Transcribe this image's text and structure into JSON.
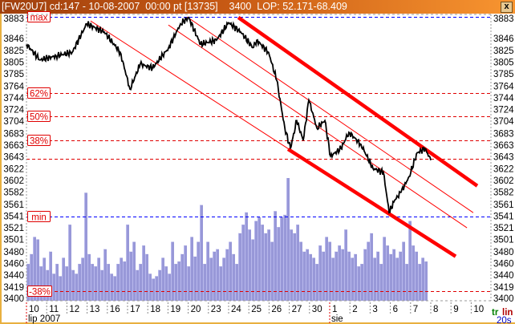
{
  "window": {
    "title": "[FW20U7] cd:147 - 10-08-2007  00:00 pt [13735]    3400  LOP: 52.171-68.409",
    "close_label": "x"
  },
  "chart_data": {
    "type": "line",
    "instrument": "FW20U7",
    "ylim": [
      3400,
      3883
    ],
    "y_ticks": [
      "3883",
      "3846",
      "3825",
      "3805",
      "3785",
      "3764",
      "3744",
      "3724",
      "3704",
      "3683",
      "3663",
      "3643",
      "3622",
      "3602",
      "3582",
      "3561",
      "3541",
      "3521",
      "3501",
      "3480",
      "3460",
      "3440",
      "3419",
      "3400"
    ],
    "x_ticks": [
      "10",
      "11",
      "12",
      "13",
      "16",
      "17",
      "18",
      "19",
      "20",
      "23",
      "24",
      "25",
      "26",
      "27",
      "30",
      "1",
      "2",
      "3",
      "6",
      "7",
      "8",
      "9",
      "10"
    ],
    "trading_days": [
      "2007-07-10",
      "2007-07-11",
      "2007-07-12",
      "2007-07-13",
      "2007-07-16",
      "2007-07-17",
      "2007-07-18",
      "2007-07-19",
      "2007-07-20",
      "2007-07-23",
      "2007-07-24",
      "2007-07-25",
      "2007-07-26",
      "2007-07-27",
      "2007-07-30",
      "2007-08-01",
      "2007-08-02",
      "2007-08-03",
      "2007-08-06",
      "2007-08-07",
      "2007-08-08",
      "2007-08-09",
      "2007-08-10"
    ],
    "month_labels": [
      {
        "label": "lip 2007",
        "day": "2007-07-10"
      },
      {
        "label": "sie",
        "day": "2007-08-01"
      }
    ],
    "levels": [
      {
        "label": "max",
        "price": 3883,
        "color": "#0000ff"
      },
      {
        "label": "62%",
        "price": 3752,
        "color": "#e00000"
      },
      {
        "label": "50%",
        "price": 3712,
        "color": "#e00000"
      },
      {
        "label": "38%",
        "price": 3671,
        "color": "#e00000"
      },
      {
        "label": "",
        "price": 3640,
        "color": "#e00000"
      },
      {
        "label": "min",
        "price": 3541,
        "color": "#0000ff"
      },
      {
        "label": "-38%",
        "price": 3412,
        "color": "#e00000"
      }
    ],
    "price_series": [
      [
        "2007-07-10",
        0.0,
        3836
      ],
      [
        "2007-07-10",
        0.67,
        3809
      ],
      [
        "2007-07-11",
        0.47,
        3816
      ],
      [
        "2007-07-12",
        0.26,
        3822
      ],
      [
        "2007-07-12",
        0.98,
        3871
      ],
      [
        "2007-07-13",
        0.85,
        3857
      ],
      [
        "2007-07-16",
        0.64,
        3822
      ],
      [
        "2007-07-17",
        0.12,
        3759
      ],
      [
        "2007-07-17",
        0.63,
        3802
      ],
      [
        "2007-07-18",
        0.23,
        3795
      ],
      [
        "2007-07-19",
        0.02,
        3829
      ],
      [
        "2007-07-19",
        0.62,
        3871
      ],
      [
        "2007-07-20",
        0.02,
        3882
      ],
      [
        "2007-07-20",
        0.61,
        3836
      ],
      [
        "2007-07-23",
        0.4,
        3843
      ],
      [
        "2007-07-24",
        0.0,
        3873
      ],
      [
        "2007-07-24",
        0.6,
        3857
      ],
      [
        "2007-07-25",
        0.2,
        3830
      ],
      [
        "2007-07-25",
        0.39,
        3843
      ],
      [
        "2007-07-25",
        0.98,
        3822
      ],
      [
        "2007-07-26",
        0.38,
        3774
      ],
      [
        "2007-07-26",
        0.78,
        3692
      ],
      [
        "2007-07-27",
        0.06,
        3657
      ],
      [
        "2007-07-27",
        0.37,
        3705
      ],
      [
        "2007-07-27",
        0.69,
        3671
      ],
      [
        "2007-07-27",
        0.97,
        3740
      ],
      [
        "2007-07-30",
        0.37,
        3692
      ],
      [
        "2007-07-30",
        0.76,
        3705
      ],
      [
        "2007-08-01",
        0.04,
        3644
      ],
      [
        "2007-08-01",
        0.56,
        3657
      ],
      [
        "2007-08-01",
        0.95,
        3685
      ],
      [
        "2007-08-02",
        0.55,
        3664
      ],
      [
        "2007-08-03",
        0.14,
        3623
      ],
      [
        "2007-08-03",
        0.66,
        3616
      ],
      [
        "2007-08-03",
        0.94,
        3547
      ],
      [
        "2007-08-06",
        0.21,
        3568
      ],
      [
        "2007-08-06",
        0.53,
        3582
      ],
      [
        "2007-08-06",
        0.93,
        3609
      ],
      [
        "2007-08-07",
        0.33,
        3650
      ],
      [
        "2007-08-07",
        0.72,
        3657
      ],
      [
        "2007-08-07",
        1.0,
        3637
      ]
    ],
    "channel_lines": [
      {
        "from": [
          "2007-07-24",
          0.48,
          3882
        ],
        "to": [
          "2007-08-10",
          0.3,
          3593
        ],
        "width": "thick"
      },
      {
        "from": [
          "2007-07-26",
          0.94,
          3656
        ],
        "to": [
          "2007-08-09",
          0.23,
          3472
        ],
        "width": "thick"
      },
      {
        "from": [
          "2007-07-13",
          0.17,
          3876
        ],
        "to": [
          "2007-07-26",
          0.98,
          3656
        ],
        "width": "thin"
      },
      {
        "from": [
          "2007-07-19",
          0.02,
          3869
        ],
        "to": [
          "2007-08-09",
          0.79,
          3521
        ],
        "width": "thin"
      },
      {
        "from": [
          "2007-07-19",
          0.94,
          3883
        ],
        "to": [
          "2007-08-10",
          0.1,
          3547
        ],
        "width": "thin"
      }
    ],
    "volume_relative": [
      30,
      38,
      52,
      50,
      28,
      35,
      25,
      40,
      22,
      30,
      20,
      35,
      28,
      62,
      25,
      22,
      30,
      35,
      88,
      38,
      30,
      28,
      35,
      25,
      42,
      30,
      22,
      20,
      30,
      35,
      32,
      62,
      40,
      48,
      25,
      30,
      45,
      38,
      22,
      18,
      20,
      25,
      35,
      28,
      22,
      48,
      30,
      32,
      38,
      45,
      28,
      52,
      36,
      48,
      78,
      30,
      48,
      35,
      40,
      42,
      28,
      35,
      42,
      48,
      38,
      30,
      55,
      62,
      72,
      58,
      50,
      65,
      68,
      62,
      55,
      58,
      48,
      73,
      60,
      68,
      70,
      100,
      58,
      55,
      62,
      48,
      40,
      42,
      38,
      35,
      30,
      45,
      40,
      52,
      48,
      35,
      40,
      45,
      42,
      58,
      40,
      35,
      38,
      28,
      30,
      42,
      48,
      55,
      35,
      40,
      30,
      52,
      45,
      38,
      42,
      35,
      40,
      48,
      30,
      65,
      45,
      40,
      30,
      35,
      32
    ],
    "colors": {
      "price": "#000000",
      "channel": "#ff0000",
      "volume": "#9898d8",
      "max_min": "#0000ff",
      "fib": "#e00000"
    }
  },
  "corner": {
    "tr": "tr",
    "lin": "lin",
    "interval": "20s"
  }
}
